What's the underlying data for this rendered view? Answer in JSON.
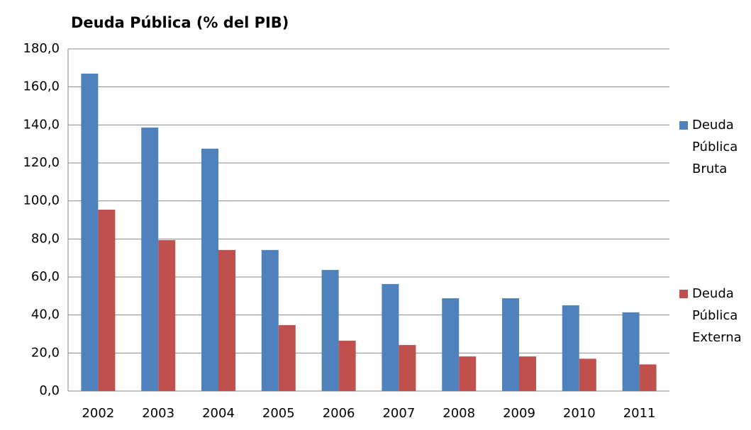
{
  "chart_data": {
    "type": "bar",
    "title": "Deuda Pública (% del PIB)",
    "categories": [
      "2002",
      "2003",
      "2004",
      "2005",
      "2006",
      "2007",
      "2008",
      "2009",
      "2010",
      "2011"
    ],
    "series": [
      {
        "name": "Deuda Pública Bruta",
        "color": "#4f81bd",
        "values": [
          167,
          138.6,
          127.5,
          74.2,
          63.7,
          56.3,
          48.8,
          48.8,
          45.1,
          41.4
        ]
      },
      {
        "name": "Deuda Pública Externa",
        "color": "#c0504d",
        "values": [
          95.4,
          79.4,
          74.2,
          34.7,
          26.5,
          24.2,
          18.2,
          18.2,
          17,
          14
        ]
      }
    ],
    "ylim": [
      0,
      180
    ],
    "yticks": [
      {
        "value": 0,
        "label": "0,0"
      },
      {
        "value": 20,
        "label": "20,0"
      },
      {
        "value": 40,
        "label": "40,0"
      },
      {
        "value": 60,
        "label": "60,0"
      },
      {
        "value": 80,
        "label": "80,0"
      },
      {
        "value": 100,
        "label": "100,0"
      },
      {
        "value": 120,
        "label": "120,0"
      },
      {
        "value": 140,
        "label": "140,0"
      },
      {
        "value": 160,
        "label": "160,0"
      },
      {
        "value": 180,
        "label": "180,0"
      }
    ],
    "grid": true,
    "legend": "right"
  }
}
